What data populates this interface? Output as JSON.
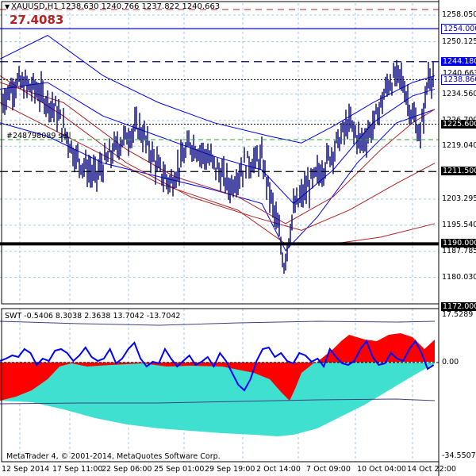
{
  "header": {
    "symbol_line": "XAUUSD,H1  1238.630 1240.766 1237.822 1240.663",
    "big_value": "27.4083"
  },
  "order_label": "#248798089 sell",
  "indicator_line": "SWT -0.5406 8.3038 2.3638 13.7042 -13.7042",
  "copyright": "MetaTrader 4, © 2001-2014, MetaQuotes Software Corp.",
  "price_axis": [
    {
      "label": "1258.050",
      "value": 1258.05
    },
    {
      "label": "1250.125",
      "value": 1250.125
    },
    {
      "label": "1234.560",
      "value": 1234.56
    },
    {
      "label": "1226.700",
      "value": 1226.7
    },
    {
      "label": "1219.040",
      "value": 1219.04
    },
    {
      "label": "1203.295",
      "value": 1203.295
    },
    {
      "label": "1195.540",
      "value": 1195.54
    },
    {
      "label": "1187.785",
      "value": 1187.785
    },
    {
      "label": "1180.030",
      "value": 1180.03
    }
  ],
  "price_tags": [
    {
      "label": "1254.000",
      "value": 1254.0,
      "style": "blue-outline"
    },
    {
      "label": "1244.180",
      "value": 1244.18,
      "style": "blue-fill"
    },
    {
      "label": "1240.663",
      "value": 1240.663,
      "style": "plain"
    },
    {
      "label": "1238.860",
      "value": 1238.86,
      "style": "blue-outline"
    },
    {
      "label": "1225.600",
      "value": 1225.6,
      "style": "black-fill"
    },
    {
      "label": "1211.500",
      "value": 1211.5,
      "style": "black-fill"
    },
    {
      "label": "1190.000",
      "value": 1190.0,
      "style": "black-fill"
    },
    {
      "label": "1172.000",
      "value": 1172.0,
      "style": "black-fill"
    }
  ],
  "indicator_axis": [
    {
      "label": "17.5289",
      "value": 17.5289
    },
    {
      "label": "0.00",
      "value": 0
    },
    {
      "label": "-34.5507",
      "value": -34.5507
    }
  ],
  "time_axis": [
    "12 Sep 2014",
    "17 Sep 11:00",
    "22 Sep 06:00",
    "25 Sep 01:00",
    "29 Sep 19:00",
    "2 Oct 14:00",
    "7 Oct 09:00",
    "10 Oct 04:00",
    "14 Oct 22:00"
  ],
  "colors": {
    "candles": "#000080",
    "fill_red": "#ff0000",
    "fill_cyan": "#40e0d0",
    "line_blue": "#0000ff",
    "ma_red": "#b22222",
    "grid": "#a8c8e0",
    "accent": "#b22222"
  }
}
